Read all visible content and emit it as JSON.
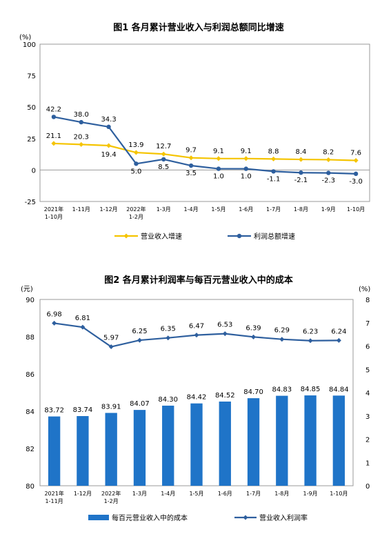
{
  "chart_data": [
    {
      "type": "line",
      "title": "图1 各月累计营业收入与利润总额同比增速",
      "ylabel": "(%)",
      "ylim": [
        -25,
        100
      ],
      "yticks": [
        "100",
        "75",
        "50",
        "25",
        "0",
        "-25"
      ],
      "categories": [
        [
          "2021年",
          "1-10月"
        ],
        [
          "1-11月"
        ],
        [
          "1-12月"
        ],
        [
          "2022年",
          "1-2月"
        ],
        [
          "1-3月"
        ],
        [
          "1-4月"
        ],
        [
          "1-5月"
        ],
        [
          "1-6月"
        ],
        [
          "1-7月"
        ],
        [
          "1-8月"
        ],
        [
          "1-9月"
        ],
        [
          "1-10月"
        ]
      ],
      "series": [
        {
          "name": "营业收入增速",
          "color": "#F5C400",
          "values": [
            21.1,
            20.3,
            19.4,
            13.9,
            12.7,
            9.7,
            9.1,
            9.1,
            8.8,
            8.4,
            8.2,
            7.6
          ],
          "labels": [
            "21.1",
            "20.3",
            "19.4",
            "13.9",
            "12.7",
            "9.7",
            "9.1",
            "9.1",
            "8.8",
            "8.4",
            "8.2",
            "7.6"
          ]
        },
        {
          "name": "利润总额增速",
          "color": "#2E5F9E",
          "values": [
            42.2,
            38.0,
            34.3,
            5.0,
            8.5,
            3.5,
            1.0,
            1.0,
            -1.1,
            -2.1,
            -2.3,
            -3.0
          ],
          "labels": [
            "42.2",
            "38.0",
            "34.3",
            "5.0",
            "8.5",
            "3.5",
            "1.0",
            "1.0",
            "-1.1",
            "-2.1",
            "-2.3",
            "-3.0"
          ]
        }
      ],
      "legend": "bottom"
    },
    {
      "type": "bar",
      "title": "图2 各月累计利润率与每百元营业收入中的成本",
      "ylabel_left": "(元)",
      "ylabel_right": "(%)",
      "ylim_left": [
        80,
        90
      ],
      "ylim_right": [
        0,
        8
      ],
      "yticks_left": [
        "90",
        "88",
        "86",
        "84",
        "82",
        "80"
      ],
      "yticks_right": [
        "8",
        "7",
        "6",
        "5",
        "4",
        "3",
        "2",
        "1",
        "0"
      ],
      "categories": [
        [
          "2021年",
          "1-11月"
        ],
        [
          "1-12月"
        ],
        [
          "2022年",
          "1-2月"
        ],
        [
          "1-3月"
        ],
        [
          "1-4月"
        ],
        [
          "1-5月"
        ],
        [
          "1-6月"
        ],
        [
          "1-7月"
        ],
        [
          "1-8月"
        ],
        [
          "1-9月"
        ],
        [
          "1-10月"
        ]
      ],
      "bar_series": {
        "name": "每百元营业收入中的成本",
        "color": "#1F74C8",
        "values": [
          83.72,
          83.74,
          83.91,
          84.07,
          84.3,
          84.42,
          84.52,
          84.7,
          84.83,
          84.85,
          84.84
        ],
        "labels": [
          "83.72",
          "83.74",
          "83.91",
          "84.07",
          "84.30",
          "84.42",
          "84.52",
          "84.70",
          "84.83",
          "84.85",
          "84.84"
        ]
      },
      "line_series": {
        "name": "营业收入利润率",
        "color": "#2E5F9E",
        "values": [
          6.98,
          6.81,
          5.97,
          6.25,
          6.35,
          6.47,
          6.53,
          6.39,
          6.29,
          6.23,
          6.24
        ],
        "labels": [
          "6.98",
          "6.81",
          "5.97",
          "6.25",
          "6.35",
          "6.47",
          "6.53",
          "6.39",
          "6.29",
          "6.23",
          "6.24"
        ]
      },
      "legend": "bottom"
    }
  ]
}
